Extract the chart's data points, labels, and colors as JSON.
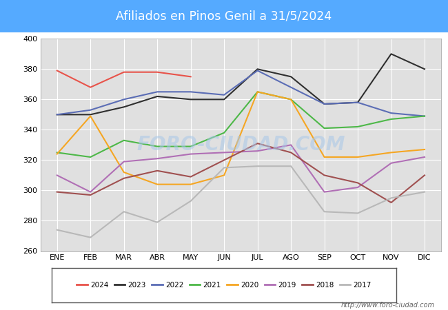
{
  "title": "Afiliados en Pinos Genil a 31/5/2024",
  "title_bg_color": "#55aaff",
  "title_text_color": "white",
  "ylim": [
    260,
    400
  ],
  "yticks": [
    260,
    280,
    300,
    320,
    340,
    360,
    380,
    400
  ],
  "months": [
    "ENE",
    "FEB",
    "MAR",
    "ABR",
    "MAY",
    "JUN",
    "JUL",
    "AGO",
    "SEP",
    "OCT",
    "NOV",
    "DIC"
  ],
  "watermark": "FORO-CIUDAD.COM",
  "url": "http://www.foro-ciudad.com",
  "series": {
    "2024": {
      "color": "#e8534a",
      "data": [
        379,
        368,
        378,
        378,
        375,
        null,
        null,
        null,
        null,
        null,
        null,
        null
      ]
    },
    "2023": {
      "color": "#303030",
      "data": [
        350,
        350,
        355,
        362,
        360,
        360,
        380,
        375,
        357,
        358,
        390,
        380
      ]
    },
    "2022": {
      "color": "#5b6db5",
      "data": [
        350,
        353,
        360,
        365,
        365,
        363,
        379,
        368,
        357,
        358,
        351,
        349
      ]
    },
    "2021": {
      "color": "#4db848",
      "data": [
        325,
        322,
        333,
        329,
        329,
        338,
        365,
        360,
        341,
        342,
        347,
        349
      ]
    },
    "2020": {
      "color": "#f5a623",
      "data": [
        324,
        349,
        312,
        304,
        304,
        310,
        365,
        360,
        322,
        322,
        325,
        327
      ]
    },
    "2019": {
      "color": "#b06fb5",
      "data": [
        310,
        299,
        319,
        321,
        324,
        325,
        326,
        330,
        299,
        302,
        318,
        322
      ]
    },
    "2018": {
      "color": "#a05050",
      "data": [
        299,
        297,
        308,
        313,
        309,
        320,
        331,
        325,
        310,
        305,
        292,
        310
      ]
    },
    "2017": {
      "color": "#b8b8b8",
      "data": [
        274,
        269,
        286,
        279,
        293,
        315,
        316,
        316,
        286,
        285,
        295,
        299
      ]
    }
  },
  "legend_order": [
    "2024",
    "2023",
    "2022",
    "2021",
    "2020",
    "2019",
    "2018",
    "2017"
  ],
  "plot_bg_color": "#e0e0e0",
  "grid_color": "#ffffff",
  "fig_bg_color": "#ffffff"
}
